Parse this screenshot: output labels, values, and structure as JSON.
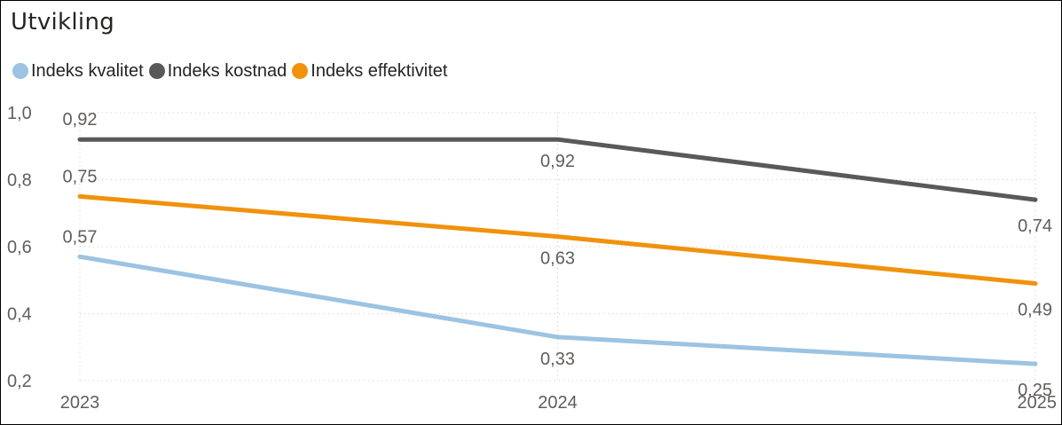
{
  "chart_data": {
    "type": "line",
    "title": "Utvikling",
    "xlabel": "",
    "ylabel": "",
    "x": [
      "2023",
      "2024",
      "2025"
    ],
    "y_ticks": [
      "1,0",
      "0,8",
      "0,6",
      "0,4",
      "0,2"
    ],
    "ylim": [
      0.2,
      1.0
    ],
    "grid": true,
    "legend_position": "top-left",
    "series": [
      {
        "name": "Indeks kvalitet",
        "color": "#9cc3e2",
        "values": [
          0.57,
          0.33,
          0.25
        ],
        "labels": [
          "0,57",
          "0,33",
          "0,25"
        ]
      },
      {
        "name": "Indeks kostnad",
        "color": "#595959",
        "values": [
          0.92,
          0.92,
          0.74
        ],
        "labels": [
          "0,92",
          "0,92",
          "0,74"
        ]
      },
      {
        "name": "Indeks effektivitet",
        "color": "#f0920c",
        "values": [
          0.75,
          0.63,
          0.49
        ],
        "labels": [
          "0,75",
          "0,63",
          "0,49"
        ]
      }
    ]
  }
}
